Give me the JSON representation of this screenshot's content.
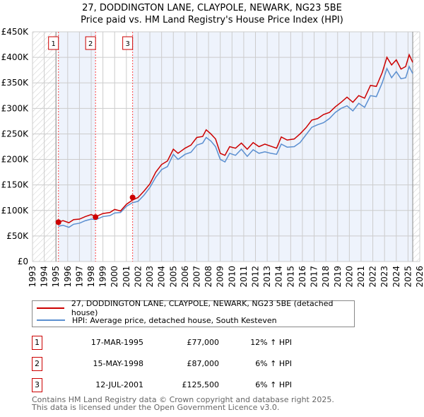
{
  "chart_data": {
    "type": "line",
    "title": "27, DODDINGTON LANE, CLAYPOLE, NEWARK, NG23 5BE",
    "subtitle": "Price paid vs. HM Land Registry's House Price Index (HPI)",
    "xlim": [
      1993,
      2026
    ],
    "ylim": [
      0,
      450000
    ],
    "y_ticks": [
      0,
      50000,
      100000,
      150000,
      200000,
      250000,
      300000,
      350000,
      400000,
      450000
    ],
    "y_tick_labels": [
      "£0",
      "£50K",
      "£100K",
      "£150K",
      "£200K",
      "£250K",
      "£300K",
      "£350K",
      "£400K",
      "£450K"
    ],
    "x_ticks": [
      1993,
      1994,
      1995,
      1996,
      1997,
      1998,
      1999,
      2000,
      2001,
      2002,
      2003,
      2004,
      2005,
      2006,
      2007,
      2008,
      2009,
      2010,
      2011,
      2012,
      2013,
      2014,
      2015,
      2016,
      2017,
      2018,
      2019,
      2020,
      2021,
      2022,
      2023,
      2024,
      2025,
      2026
    ],
    "grid": true,
    "series": [
      {
        "name": "27, DODDINGTON LANE, CLAYPOLE, NEWARK, NG23 5BE (detached house)",
        "color": "#cc0000",
        "x": [
          1995.2,
          1995.6,
          1996.1,
          1996.5,
          1997,
          1997.5,
          1998,
          1998.4,
          1999,
          1999.6,
          2000,
          2000.5,
          2001,
          2001.5,
          2002,
          2002.5,
          2003,
          2003.5,
          2004,
          2004.5,
          2005,
          2005.4,
          2006,
          2006.5,
          2007,
          2007.5,
          2007.8,
          2008.2,
          2008.6,
          2009,
          2009.4,
          2009.8,
          2010.3,
          2010.8,
          2011.3,
          2011.8,
          2012.3,
          2012.8,
          2013.3,
          2013.8,
          2014.2,
          2014.7,
          2015.3,
          2015.8,
          2016.3,
          2016.8,
          2017.3,
          2017.8,
          2018.3,
          2018.8,
          2019.3,
          2019.8,
          2020.3,
          2020.8,
          2021.3,
          2021.8,
          2022.3,
          2022.8,
          2023.2,
          2023.6,
          2024,
          2024.4,
          2024.8,
          2025.1,
          2025.4
        ],
        "y": [
          77000,
          80000,
          76000,
          82000,
          83000,
          88000,
          92000,
          88000,
          94000,
          96000,
          102000,
          99000,
          112000,
          120000,
          125500,
          138000,
          152000,
          175000,
          190000,
          197000,
          220000,
          212000,
          222000,
          228000,
          243000,
          245000,
          258000,
          250000,
          240000,
          212000,
          208000,
          225000,
          222000,
          232000,
          220000,
          233000,
          225000,
          230000,
          226000,
          222000,
          244000,
          238000,
          240000,
          250000,
          262000,
          277000,
          280000,
          288000,
          292000,
          303000,
          312000,
          322000,
          312000,
          325000,
          320000,
          345000,
          343000,
          370000,
          400000,
          385000,
          395000,
          377000,
          382000,
          405000,
          390000
        ]
      },
      {
        "name": "HPI: Average price, detached house, South Kesteven",
        "color": "#5b8fd0",
        "x": [
          1995.2,
          1995.6,
          1996.1,
          1996.5,
          1997,
          1997.5,
          1998,
          1998.4,
          1999,
          1999.6,
          2000,
          2000.5,
          2001,
          2001.5,
          2002,
          2002.5,
          2003,
          2003.5,
          2004,
          2004.5,
          2005,
          2005.4,
          2006,
          2006.5,
          2007,
          2007.5,
          2007.8,
          2008.2,
          2008.6,
          2009,
          2009.4,
          2009.8,
          2010.3,
          2010.8,
          2011.3,
          2011.8,
          2012.3,
          2012.8,
          2013.3,
          2013.8,
          2014.2,
          2014.7,
          2015.3,
          2015.8,
          2016.3,
          2016.8,
          2017.3,
          2017.8,
          2018.3,
          2018.8,
          2019.3,
          2019.8,
          2020.3,
          2020.8,
          2021.3,
          2021.8,
          2022.3,
          2022.8,
          2023.2,
          2023.6,
          2024,
          2024.4,
          2024.8,
          2025.1,
          2025.4
        ],
        "y": [
          69000,
          71000,
          67000,
          73000,
          75000,
          80000,
          83000,
          82000,
          88000,
          90000,
          95000,
          96000,
          108000,
          115000,
          118000,
          130000,
          145000,
          165000,
          180000,
          186000,
          210000,
          200000,
          210000,
          214000,
          228000,
          232000,
          243000,
          236000,
          225000,
          200000,
          195000,
          212000,
          208000,
          220000,
          206000,
          219000,
          212000,
          215000,
          212000,
          210000,
          230000,
          224000,
          225000,
          233000,
          248000,
          263000,
          268000,
          272000,
          280000,
          292000,
          300000,
          305000,
          295000,
          310000,
          302000,
          325000,
          323000,
          350000,
          378000,
          360000,
          372000,
          358000,
          360000,
          382000,
          368000
        ]
      }
    ],
    "transactions": [
      {
        "id": "1",
        "x": 1995.21,
        "date": "17-MAR-1995",
        "price": "£77,000",
        "value": 77000,
        "hpi": "12% ↑ HPI"
      },
      {
        "id": "2",
        "x": 1998.37,
        "date": "15-MAY-1998",
        "price": "£87,000",
        "value": 87000,
        "hpi": "6% ↑ HPI"
      },
      {
        "id": "3",
        "x": 2001.53,
        "date": "12-JUL-2001",
        "price": "£125,500",
        "value": 125500,
        "hpi": "6% ↑ HPI"
      }
    ]
  },
  "footer": {
    "line1": "Contains HM Land Registry data © Crown copyright and database right 2025.",
    "line2": "This data is licensed under the Open Government Licence v3.0."
  }
}
